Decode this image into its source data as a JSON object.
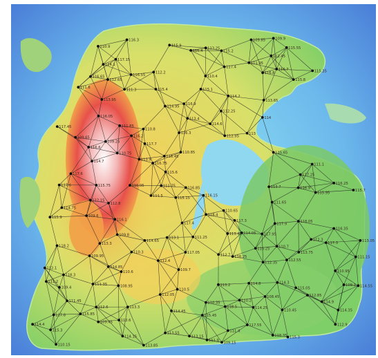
{
  "map": {
    "description_colors": {
      "ocean_deep": "#4f8fe0",
      "ocean_shallow": "#7fd0ee",
      "lowland": "#7ecb6a",
      "midland": "#f2e06a",
      "highland": "#f1a040",
      "mountain": "#e8504a",
      "peak": "#f4f0f0"
    },
    "node_color": "#111111",
    "edge_color": "#222222",
    "labels": [
      "113",
      "115.25",
      "115.85",
      "108.45",
      "112.25",
      "111.35",
      "114.9",
      "117.6",
      "115.65",
      "110.75",
      "114.35",
      "115.6",
      "109.65",
      "111.5",
      "114.45",
      "110.35",
      "116.8",
      "117.4",
      "114",
      "116.75",
      "113.55",
      "115.9",
      "112.65",
      "109.85",
      "111.85",
      "114.95",
      "116.9",
      "118.25",
      "115.15",
      "113.15",
      "112.15",
      "116.35",
      "113.75",
      "108.95",
      "109.6",
      "114.25",
      "112.7",
      "115.3",
      "110.5",
      "113.3",
      "118.5",
      "116.3",
      "112.8",
      "117.55",
      "110.3",
      "109.25",
      "114.75",
      "111.15",
      "116.85",
      "112.55",
      "115.75",
      "117.8",
      "113.85",
      "116.05",
      "109.15",
      "114.85",
      "111.65",
      "115.55",
      "110.85",
      "117.95",
      "112.95",
      "116.45",
      "114.15",
      "113.45",
      "110.95",
      "118.35",
      "115.45",
      "116.65",
      "109.45",
      "113.65",
      "112.85",
      "111.25",
      "117.25",
      "114.05",
      "116.55",
      "110.65",
      "115.05",
      "113.95",
      "111.75",
      "117.05",
      "116.15",
      "112.35",
      "115.95",
      "110.15",
      "118.05",
      "114.55",
      "113.05",
      "116.25",
      "112.45",
      "111.95",
      "117.45",
      "115.35",
      "109.95",
      "114.65",
      "113.25",
      "110.45",
      "116.95",
      "112.05",
      "115.7",
      "111.45",
      "117.15",
      "114.7",
      "113.7",
      "110.7",
      "116.7",
      "109.7",
      "115.2",
      "112.2",
      "113.2",
      "117.7",
      "111.2",
      "114.2",
      "116.2",
      "110.2",
      "118.2",
      "115.8",
      "112.6",
      "113.6",
      "111.6",
      "116.6",
      "109.8",
      "114.8",
      "117.3",
      "110.8",
      "115.1",
      "112.9",
      "116.1",
      "113.9",
      "111.9",
      "114.1",
      "117.9",
      "110.9",
      "116.4",
      "109.4",
      "115.4",
      "112.4",
      "113.4",
      "111.4",
      "118.4",
      "114.4",
      "117.4",
      "110.4",
      "116.9",
      "109.9",
      "115.9",
      "112.1",
      "113.1",
      "111.1",
      "114.6",
      "117.6",
      "110.6",
      "116.3",
      "109.3",
      "115.3",
      "112.3",
      "113.3",
      "111.3",
      "118.3",
      "114.3",
      "117.3"
    ]
  }
}
